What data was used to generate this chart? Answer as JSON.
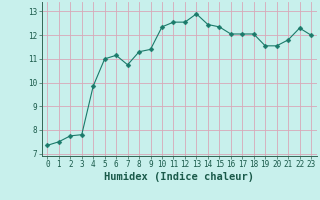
{
  "x": [
    0,
    1,
    2,
    3,
    4,
    5,
    6,
    7,
    8,
    9,
    10,
    11,
    12,
    13,
    14,
    15,
    16,
    17,
    18,
    19,
    20,
    21,
    22,
    23
  ],
  "y": [
    7.35,
    7.5,
    7.75,
    7.8,
    9.85,
    11.0,
    11.15,
    10.75,
    11.3,
    11.4,
    12.35,
    12.55,
    12.55,
    12.9,
    12.45,
    12.35,
    12.05,
    12.05,
    12.05,
    11.55,
    11.55,
    11.8,
    12.3,
    12.0
  ],
  "line_color": "#1a7a6a",
  "marker_color": "#1a7a6a",
  "bg_color": "#c8f0ec",
  "grid_color": "#d8a8b8",
  "xlabel": "Humidex (Indice chaleur)",
  "xlim": [
    -0.5,
    23.5
  ],
  "ylim": [
    6.9,
    13.4
  ],
  "yticks": [
    7,
    8,
    9,
    10,
    11,
    12,
    13
  ],
  "xticks": [
    0,
    1,
    2,
    3,
    4,
    5,
    6,
    7,
    8,
    9,
    10,
    11,
    12,
    13,
    14,
    15,
    16,
    17,
    18,
    19,
    20,
    21,
    22,
    23
  ],
  "tick_fontsize": 5.5,
  "xlabel_fontsize": 7.5,
  "marker_size": 2.5,
  "linewidth": 0.8
}
